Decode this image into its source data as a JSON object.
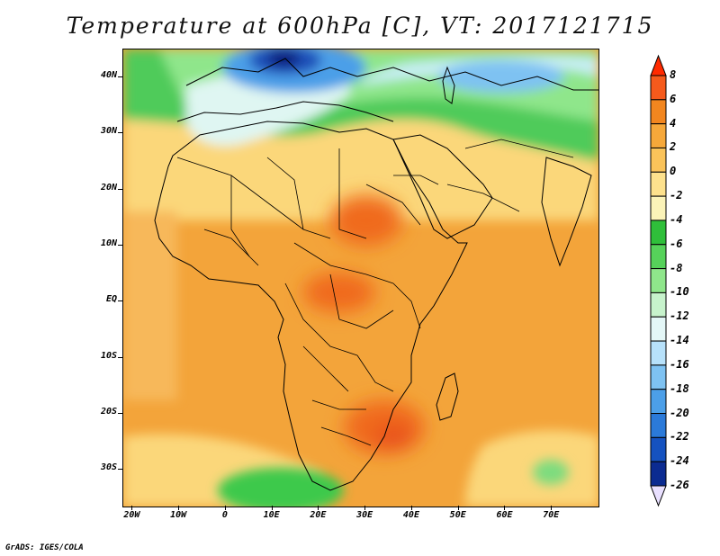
{
  "title": "Temperature at 600hPa [C], VT: 2017121715",
  "credit": "GrADS: IGES/COLA",
  "map": {
    "region": "Africa and surrounding oceans",
    "lat_labels": [
      "40N",
      "30N",
      "20N",
      "10N",
      "EQ",
      "10S",
      "20S",
      "30S"
    ],
    "lat_values": [
      40,
      30,
      20,
      10,
      0,
      -10,
      -20,
      -30
    ],
    "lon_labels": [
      "20W",
      "10W",
      "0",
      "10E",
      "20E",
      "30E",
      "40E",
      "50E",
      "60E",
      "70E"
    ],
    "lon_values": [
      -20,
      -10,
      0,
      10,
      20,
      30,
      40,
      50,
      60,
      70
    ],
    "lat_range": [
      -36.5,
      45
    ],
    "lon_range": [
      -22,
      80
    ],
    "field_regions": [
      {
        "name": "central-africa-warm-core",
        "value_range": [
          4,
          6
        ],
        "color": "#f06a1e"
      },
      {
        "name": "southern-africa-warm-tongue",
        "value_range": [
          4,
          6
        ],
        "color": "#f06a1e"
      },
      {
        "name": "mediterranean-cold-pool",
        "value_range": [
          -26,
          -20
        ],
        "color": "#0a1f7a"
      },
      {
        "name": "north-africa-cold-band",
        "value_range": [
          -12,
          -6
        ],
        "color": "#4fd26e"
      },
      {
        "name": "southern-ocean-cool-patch",
        "value_range": [
          -6,
          -4
        ],
        "color": "#3cc94b"
      }
    ]
  },
  "colorbar": {
    "labels": [
      "8",
      "6",
      "4",
      "2",
      "0",
      "-2",
      "-4",
      "-6",
      "-8",
      "-10",
      "-12",
      "-14",
      "-16",
      "-18",
      "-20",
      "-22",
      "-24",
      "-26"
    ],
    "colors": [
      "#ff2a00",
      "#f55a1c",
      "#f2861f",
      "#f6a83a",
      "#fac35a",
      "#fde18d",
      "#fbf3b8",
      "#2fbf3a",
      "#56d25a",
      "#8fe68b",
      "#c7f3cc",
      "#e4f7f7",
      "#b7e1fa",
      "#7ec2f2",
      "#4c9fe8",
      "#2b7ad9",
      "#1552c0",
      "#0b2b91",
      "#050a5f"
    ]
  }
}
